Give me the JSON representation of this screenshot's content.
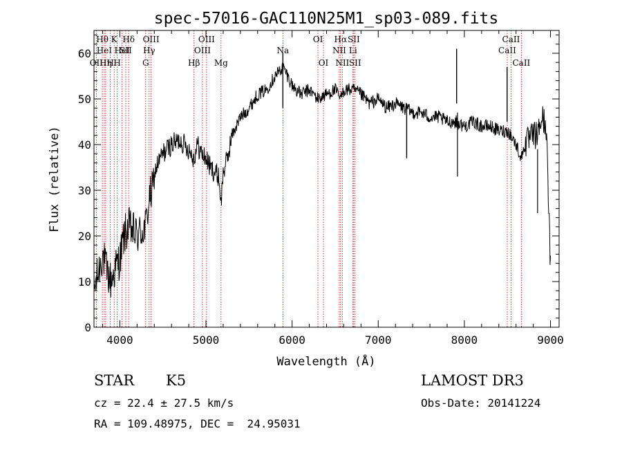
{
  "chart_data": {
    "type": "line",
    "title": "spec-57016-GAC110N25M1_sp03-089.fits",
    "xlabel": "Wavelength (Å)",
    "ylabel": "Flux (relative)",
    "xlim": [
      3700,
      9100
    ],
    "ylim": [
      0,
      65
    ],
    "xticks": [
      4000,
      5000,
      6000,
      7000,
      8000,
      9000
    ],
    "xtick_labels": [
      "4000",
      "5000",
      "6000",
      "7000",
      "8000",
      "9000"
    ],
    "yticks": [
      0,
      10,
      20,
      30,
      40,
      50,
      60
    ],
    "ytick_labels": [
      "0",
      "10",
      "20",
      "30",
      "40",
      "50",
      "60"
    ],
    "grid": false,
    "series": [
      {
        "name": "spectrum",
        "x": [
          3700,
          3750,
          3800,
          3850,
          3900,
          3950,
          4000,
          4050,
          4100,
          4150,
          4200,
          4250,
          4300,
          4340,
          4380,
          4420,
          4500,
          4600,
          4700,
          4800,
          4860,
          4900,
          4950,
          5000,
          5050,
          5100,
          5150,
          5175,
          5200,
          5250,
          5300,
          5400,
          5500,
          5600,
          5700,
          5800,
          5893,
          5950,
          6000,
          6100,
          6200,
          6300,
          6400,
          6500,
          6563,
          6600,
          6700,
          6800,
          6900,
          7000,
          7100,
          7200,
          7300,
          7400,
          7500,
          7600,
          7700,
          7800,
          7900,
          8000,
          8100,
          8200,
          8300,
          8400,
          8500,
          8542,
          8600,
          8662,
          8700,
          8750,
          8800,
          8850,
          8900,
          8950,
          9000
        ],
        "y": [
          8,
          12,
          16,
          12,
          10,
          13,
          15,
          20,
          22,
          21,
          20,
          21,
          22,
          28,
          30,
          35,
          38,
          40,
          41,
          39,
          37,
          40,
          38,
          37,
          35,
          34,
          33,
          27,
          34,
          37,
          42,
          46,
          48,
          51,
          52,
          55,
          57,
          55,
          53,
          51,
          52,
          50,
          51,
          52,
          50,
          52,
          52,
          51,
          49,
          50,
          48,
          49,
          48,
          47,
          47,
          46,
          46,
          45,
          45,
          44,
          45,
          44,
          44,
          43,
          43,
          42,
          40,
          37,
          40,
          41,
          42,
          42,
          46,
          44,
          13
        ],
        "color": "#000000"
      }
    ],
    "spike_lines": [
      {
        "x": 5893,
        "y": 60
      },
      {
        "x": 7330,
        "y": 49
      },
      {
        "x": 7910,
        "y": 61
      },
      {
        "x": 8496,
        "y": 57
      }
    ],
    "dip_lines": [
      {
        "x": 8850,
        "y": 25
      },
      {
        "x": 7920,
        "y": 33
      }
    ],
    "line_markers": [
      {
        "x": 3727,
        "label": "OII",
        "row": 2
      },
      {
        "x": 3797,
        "label": "Hθ",
        "row": 0
      },
      {
        "x": 3820,
        "label": "HeI",
        "row": 1
      },
      {
        "x": 3835,
        "label": "Hη",
        "row": 2
      },
      {
        "x": 3889,
        "label": "H",
        "row": 2
      },
      {
        "x": 3934,
        "label": "K",
        "row": 0
      },
      {
        "x": 3970,
        "label": "H",
        "row": 2
      },
      {
        "x": 4026,
        "label": "HeI",
        "row": 1
      },
      {
        "x": 4069,
        "label": "SII",
        "row": 1
      },
      {
        "x": 4102,
        "label": "Hδ",
        "row": 0
      },
      {
        "x": 4300,
        "label": "G",
        "row": 2
      },
      {
        "x": 4340,
        "label": "Hγ",
        "row": 1
      },
      {
        "x": 4363,
        "label": "OIII",
        "row": 0
      },
      {
        "x": 4861,
        "label": "Hβ",
        "row": 2
      },
      {
        "x": 4959,
        "label": "OIII",
        "row": 1
      },
      {
        "x": 5007,
        "label": "OIII",
        "row": 0
      },
      {
        "x": 5175,
        "label": "Mg",
        "row": 2
      },
      {
        "x": 5893,
        "label": "Na",
        "row": 1
      },
      {
        "x": 6300,
        "label": "OI",
        "row": 0
      },
      {
        "x": 6364,
        "label": "OI",
        "row": 2
      },
      {
        "x": 6548,
        "label": "NII",
        "row": 1
      },
      {
        "x": 6563,
        "label": "Hα",
        "row": 0
      },
      {
        "x": 6583,
        "label": "NII",
        "row": 2
      },
      {
        "x": 6707,
        "label": "Li",
        "row": 1
      },
      {
        "x": 6716,
        "label": "SII",
        "row": 0
      },
      {
        "x": 6731,
        "label": "SII",
        "row": 2
      },
      {
        "x": 8498,
        "label": "CaII",
        "row": 1
      },
      {
        "x": 8542,
        "label": "CaII",
        "row": 0
      },
      {
        "x": 8662,
        "label": "CaII",
        "row": 2
      }
    ]
  },
  "info": {
    "object_class": "STAR",
    "subclass": "K5",
    "survey": "LAMOST DR3",
    "cz": "cz = 22.4 ± 27.5 km/s",
    "obs_date": "Obs-Date: 20141224",
    "coords": "RA = 109.48975, DEC =  24.95031"
  }
}
